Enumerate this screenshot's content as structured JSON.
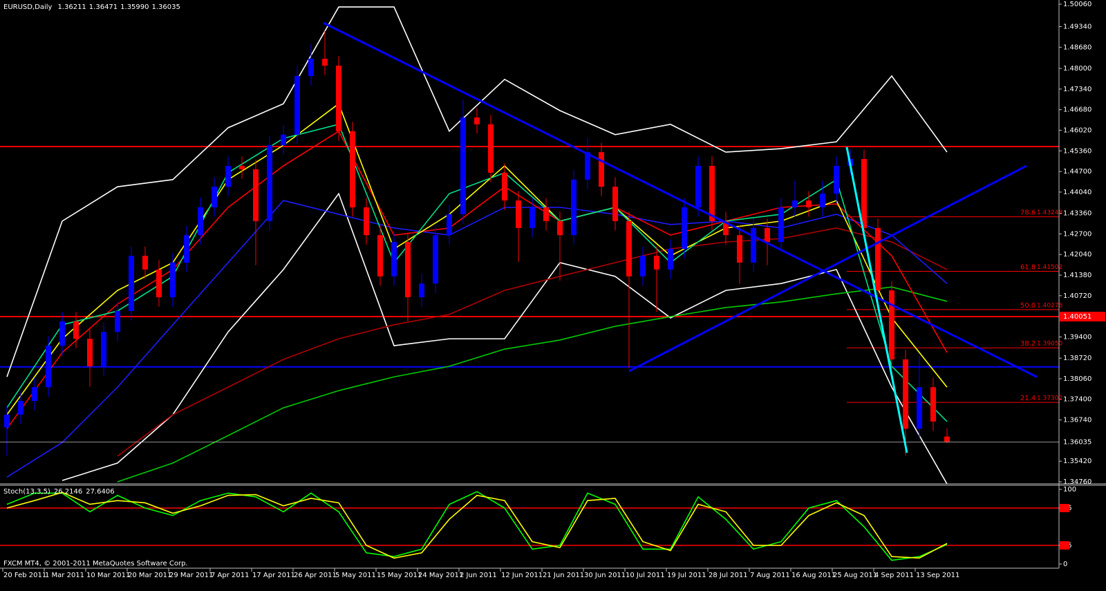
{
  "symbol": "EURUSD,Daily",
  "header_values": [
    1.36211,
    1.36471,
    {
      "value": 1.3599,
      "label": "1.35990"
    },
    1.36035
  ],
  "footer": "FXCM MT4, © 2001-2011 MetaQuotes Software Corp.",
  "date_labels": [
    "20 Feb 2011",
    "1 Mar 2011",
    "10 Mar 2011",
    "20 Mar 2011",
    "29 Mar 2011",
    "7 Apr 2011",
    "17 Apr 2011",
    "26 Apr 2011",
    "5 May 2011",
    "15 May 2011",
    "24 May 2011",
    "2 Jun 2011",
    "12 Jun 2011",
    "21 Jun 2011",
    "30 Jun 2011",
    "10 Jul 2011",
    "19 Jul 2011",
    "28 Jul 2011",
    "7 Aug 2011",
    "16 Aug 2011",
    "25 Aug 2011",
    "4 Sep 2011",
    "13 Sep 2011"
  ],
  "chart_data": [
    {
      "type": "candlestick",
      "up_color": "#0000ff",
      "down_color": "#ff0000",
      "open": [
        1.365,
        1.3691,
        1.3735,
        1.3779,
        1.3912,
        1.399,
        1.3934,
        1.3846,
        1.3956,
        1.4023,
        1.42,
        1.4156,
        1.4067,
        1.4178,
        1.4266,
        1.4355,
        1.4421,
        1.4488,
        1.4477,
        1.4311,
        1.4554,
        1.4588,
        1.4776,
        1.4831,
        1.4809,
        1.4599,
        1.4355,
        1.4266,
        1.4134,
        1.4244,
        1.4067,
        1.4111,
        1.4266,
        1.4333,
        1.4643,
        1.4621,
        1.4466,
        1.4377,
        1.4289,
        1.4355,
        1.4311,
        1.4266,
        1.4444,
        1.4532,
        1.4421,
        1.4311,
        1.4134,
        1.42,
        1.4156,
        1.4222,
        1.4355,
        1.4488,
        1.4311,
        1.4266,
        1.4178,
        1.4289,
        1.4244,
        1.4355,
        1.4377,
        1.4355,
        1.4399,
        1.4488,
        1.451,
        1.4289,
        1.4089,
        1.3868,
        1.3646,
        1.3779,
        1.36211
      ],
      "high": [
        1.3721,
        1.3765,
        1.3809,
        1.3942,
        1.402,
        1.402,
        1.3964,
        1.3986,
        1.4053,
        1.423,
        1.423,
        1.4186,
        1.4208,
        1.4296,
        1.4385,
        1.4451,
        1.4518,
        1.4518,
        1.4507,
        1.4584,
        1.4618,
        1.4806,
        1.488,
        1.492,
        1.4839,
        1.4629,
        1.4385,
        1.4296,
        1.4274,
        1.4274,
        1.4141,
        1.4296,
        1.4363,
        1.47,
        1.4673,
        1.4651,
        1.4496,
        1.4407,
        1.4385,
        1.4385,
        1.4341,
        1.4474,
        1.4577,
        1.4562,
        1.4451,
        1.4341,
        1.423,
        1.423,
        1.4252,
        1.4385,
        1.4518,
        1.4518,
        1.4341,
        1.4296,
        1.4319,
        1.4319,
        1.4385,
        1.444,
        1.4407,
        1.444,
        1.4518,
        1.454,
        1.454,
        1.4319,
        1.4119,
        1.3898,
        1.388,
        1.3809,
        1.36471
      ],
      "low": [
        1.356,
        1.3661,
        1.3705,
        1.3749,
        1.3882,
        1.3904,
        1.378,
        1.3816,
        1.3926,
        1.3993,
        1.4126,
        1.4037,
        1.4037,
        1.4148,
        1.4236,
        1.4325,
        1.4391,
        1.4447,
        1.417,
        1.4281,
        1.4524,
        1.4558,
        1.4746,
        1.4779,
        1.4569,
        1.4325,
        1.4236,
        1.4104,
        1.4104,
        1.399,
        1.4037,
        1.4081,
        1.4236,
        1.4303,
        1.4591,
        1.4436,
        1.4347,
        1.418,
        1.4259,
        1.4281,
        1.412,
        1.4236,
        1.4414,
        1.4391,
        1.4281,
        1.384,
        1.4104,
        1.402,
        1.4126,
        1.4192,
        1.4325,
        1.4281,
        1.4236,
        1.411,
        1.4148,
        1.417,
        1.4214,
        1.4325,
        1.4325,
        1.4325,
        1.4369,
        1.4458,
        1.4259,
        1.4059,
        1.3838,
        1.356,
        1.3616,
        1.3639,
        1.3599
      ],
      "close": [
        1.3691,
        1.3735,
        1.3779,
        1.3912,
        1.399,
        1.3934,
        1.3846,
        1.3956,
        1.4023,
        1.42,
        1.4156,
        1.4067,
        1.4178,
        1.4266,
        1.4355,
        1.4421,
        1.4488,
        1.4477,
        1.4311,
        1.4554,
        1.4588,
        1.4776,
        1.4831,
        1.4809,
        1.4599,
        1.4355,
        1.4266,
        1.4134,
        1.4244,
        1.4067,
        1.4111,
        1.4266,
        1.4333,
        1.4643,
        1.4621,
        1.4466,
        1.4377,
        1.4289,
        1.4355,
        1.4311,
        1.4266,
        1.4444,
        1.4532,
        1.4421,
        1.4311,
        1.4134,
        1.42,
        1.4156,
        1.4222,
        1.4355,
        1.4488,
        1.4311,
        1.4266,
        1.4178,
        1.4289,
        1.4244,
        1.4355,
        1.4377,
        1.4355,
        1.4399,
        1.4488,
        1.451,
        1.4289,
        1.4089,
        1.3868,
        1.3646,
        1.3779,
        1.3669,
        1.36035
      ],
      "lines": [
        {
          "color": "#ffffff",
          "values": [
            1.3812,
            1.4311,
            1.4421,
            1.4444,
            1.461,
            1.4687,
            1.4997,
            1.4997,
            1.4599,
            1.4765,
            1.4665,
            1.4588,
            1.4621,
            1.4532,
            1.4543,
            1.4565,
            1.4776,
            1.4532
          ]
        },
        {
          "color": "#ffffff",
          "values": [
            null,
            1.348,
            1.3536,
            1.3691,
            1.3956,
            1.4156,
            1.4399,
            1.3912,
            1.3934,
            1.3934,
            1.4178,
            1.4134,
            1.4001,
            1.4089,
            1.4111,
            1.4156,
            1.3779,
            1.3469
          ]
        },
        {
          "color": "#00cc00",
          "values": [
            null,
            null,
            1.3476,
            1.3536,
            1.3624,
            1.3713,
            1.3768,
            1.3812,
            1.3846,
            1.3901,
            1.393,
            1.3974,
            1.4005,
            1.4034,
            1.4052,
            1.4078,
            1.41,
            1.4054
          ]
        },
        {
          "color": "#b00000",
          "values": [
            null,
            null,
            1.3558,
            1.3691,
            1.3779,
            1.3868,
            1.3934,
            1.3979,
            1.4012,
            1.4089,
            1.4134,
            1.4178,
            1.4222,
            1.4244,
            1.4255,
            1.4289,
            1.4244,
            1.4156
          ]
        },
        {
          "color": "#1c1cff",
          "values": [
            1.3491,
            1.3602,
            1.3779,
            1.3979,
            1.4178,
            1.4377,
            1.4333,
            1.4289,
            1.4266,
            1.4355,
            1.4355,
            1.4333,
            1.43,
            1.4311,
            1.4289,
            1.4333,
            1.4266,
            1.4111
          ]
        },
        {
          "color": "#ff0000",
          "values": [
            1.3646,
            1.389,
            1.4045,
            1.4156,
            1.4355,
            1.4488,
            1.4599,
            1.4266,
            1.4289,
            1.4421,
            1.4311,
            1.4355,
            1.4266,
            1.4311,
            1.4355,
            1.4366,
            1.42,
            1.389
          ]
        },
        {
          "color": "#ffff00",
          "values": [
            1.3691,
            1.3934,
            1.4089,
            1.4178,
            1.4444,
            1.4554,
            1.4687,
            1.4222,
            1.4333,
            1.4488,
            1.4311,
            1.4355,
            1.42,
            1.4289,
            1.4311,
            1.4377,
            1.4001,
            1.3779
          ]
        },
        {
          "color": "#00e08a",
          "values": [
            1.3713,
            1.3979,
            1.4023,
            1.4134,
            1.4466,
            1.4576,
            1.4621,
            1.4178,
            1.4399,
            1.4466,
            1.4311,
            1.4355,
            1.4178,
            1.4311,
            1.4333,
            1.4444,
            1.3846,
            1.3669
          ]
        }
      ],
      "trendlines": [
        {
          "color": "#0000ff",
          "from": [
            22.9,
            1.4946
          ],
          "to": [
            74.5,
            1.3812
          ]
        },
        {
          "color": "#0000ff",
          "from": [
            45,
            1.383
          ],
          "to": [
            73.75,
            1.4488
          ]
        },
        {
          "color": "#00ffff",
          "from": [
            60.75,
            1.4548
          ],
          "to": [
            65.1,
            1.3569
          ]
        }
      ],
      "hlines": [
        {
          "value": 1.455,
          "color": "#ff0000"
        },
        {
          "value": 1.40051,
          "color": "#ff0000",
          "label": "1.40051"
        },
        {
          "value": 1.3844,
          "color": "#0000ff"
        }
      ],
      "fibo_color": "#ff0000",
      "fibo": [
        {
          "level": "78.6",
          "value": 1.43248
        },
        {
          "level": "61.8",
          "value": 1.41502
        },
        {
          "level": "50.0",
          "value": 1.40276
        },
        {
          "level": "38.2",
          "value": 1.3905,
          "label": "1.39050"
        },
        {
          "level": "21.4",
          "value": 1.37302
        }
      ],
      "ylim": [
        1.34693,
        1.50193
      ],
      "yticks": [
        {
          "value": 1.5006,
          "label": "1.50060"
        },
        {
          "value": 1.4934,
          "label": "1.49340"
        },
        {
          "value": 1.4868,
          "label": "1.48680"
        },
        {
          "value": 1.48,
          "label": "1.48000"
        },
        {
          "value": 1.4734,
          "label": "1.47340"
        },
        {
          "value": 1.4668,
          "label": "1.46680"
        },
        {
          "value": 1.4602,
          "label": "1.46020"
        },
        {
          "value": 1.4536,
          "label": "1.45360"
        },
        {
          "value": 1.447,
          "label": "1.44700"
        },
        {
          "value": 1.4404,
          "label": "1.44040"
        },
        {
          "value": 1.4336,
          "label": "1.43360"
        },
        {
          "value": 1.427,
          "label": "1.42700"
        },
        {
          "value": 1.4204,
          "label": "1.42040"
        },
        {
          "value": 1.4138,
          "label": "1.41380"
        },
        {
          "value": 1.4072,
          "label": "1.40720"
        },
        {
          "value": 1.394,
          "label": "1.39400"
        },
        {
          "value": 1.3872,
          "label": "1.38720"
        },
        {
          "value": 1.3806,
          "label": "1.38060"
        },
        {
          "value": 1.374,
          "label": "1.37400"
        },
        {
          "value": 1.3674,
          "label": "1.36740"
        },
        {
          "value": 1.3542,
          "label": "1.35420"
        },
        {
          "value": 1.3476,
          "label": "1.34760"
        }
      ]
    },
    {
      "type": "stochastic",
      "title": "Stoch(13,3,5)",
      "ylim": [
        0,
        100
      ],
      "yticks": [
        0,
        25,
        75,
        100
      ],
      "levels": [
        25,
        75
      ],
      "level_color": "#ff0000",
      "series": [
        {
          "color": "#00ff00",
          "values": [
            80,
            95,
            95,
            70,
            92,
            75,
            65,
            85,
            95,
            90,
            70,
            95,
            70,
            15,
            10,
            20,
            80,
            97,
            75,
            20,
            25,
            95,
            80,
            20,
            20,
            90,
            60,
            20,
            30,
            75,
            85,
            50,
            5,
            10,
            26.2146
          ]
        },
        {
          "color": "#ffff00",
          "values": [
            75,
            85,
            96,
            80,
            85,
            82,
            68,
            78,
            92,
            93,
            78,
            88,
            82,
            25,
            8,
            15,
            60,
            92,
            85,
            30,
            22,
            85,
            88,
            30,
            18,
            80,
            70,
            25,
            25,
            65,
            82,
            65,
            10,
            8,
            27.6406
          ]
        }
      ]
    }
  ]
}
